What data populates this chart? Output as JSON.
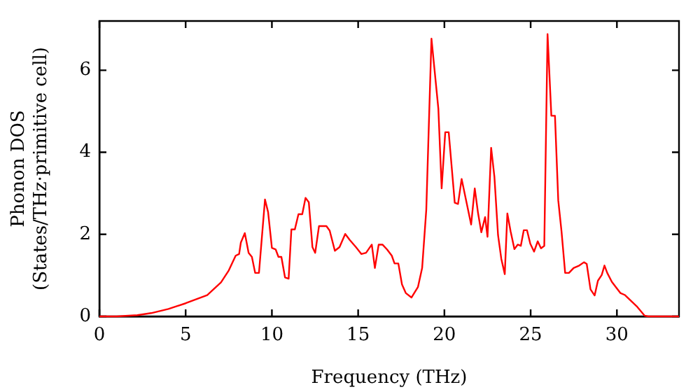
{
  "chart_data": {
    "type": "line",
    "xlabel": "Frequency (THz)",
    "ylabel": "Phonon DOS\n(States/THz·primitive cell)",
    "xlim": [
      0,
      33.6
    ],
    "xticks": [
      0,
      5,
      10,
      15,
      20,
      25,
      30
    ],
    "ylim": [
      0,
      7.2
    ],
    "yticks": [
      0,
      2,
      4,
      6
    ],
    "grid": false,
    "legend": false,
    "marker": "none",
    "line_style": "solid",
    "series": [
      {
        "color": "#ff0000",
        "x": [
          0,
          1,
          2.2,
          3,
          4,
          5,
          6.25,
          7.05,
          7.5,
          7.9,
          8.1,
          8.2,
          8.43,
          8.65,
          8.84,
          9.03,
          9.25,
          9.6,
          9.78,
          10.0,
          10.22,
          10.38,
          10.55,
          10.76,
          10.97,
          11.13,
          11.33,
          11.54,
          11.76,
          11.95,
          12.14,
          12.35,
          12.51,
          12.73,
          13.16,
          13.35,
          13.65,
          13.92,
          14.25,
          14.52,
          14.87,
          15.19,
          15.46,
          15.79,
          15.97,
          16.19,
          16.41,
          16.68,
          16.95,
          17.11,
          17.33,
          17.54,
          17.76,
          18.09,
          18.47,
          18.71,
          18.95,
          19.25,
          19.65,
          19.84,
          20.05,
          20.25,
          20.6,
          20.79,
          21.0,
          21.55,
          21.76,
          21.95,
          22.14,
          22.36,
          22.5,
          22.71,
          22.9,
          23.11,
          23.3,
          23.5,
          23.65,
          23.84,
          24.06,
          24.25,
          24.43,
          24.6,
          24.79,
          24.98,
          25.2,
          25.41,
          25.6,
          25.79,
          25.98,
          26.2,
          26.41,
          26.6,
          26.79,
          27.0,
          27.22,
          27.49,
          27.82,
          28.09,
          28.25,
          28.47,
          28.71,
          28.9,
          29.12,
          29.28,
          29.44,
          29.71,
          30.2,
          30.47,
          31.14,
          31.6,
          31.81,
          33.6
        ],
        "values": [
          0,
          0,
          0.03,
          0.08,
          0.18,
          0.32,
          0.52,
          0.83,
          1.12,
          1.48,
          1.52,
          1.8,
          2.03,
          1.55,
          1.45,
          1.06,
          1.06,
          2.85,
          2.54,
          1.67,
          1.63,
          1.45,
          1.45,
          0.95,
          0.92,
          2.12,
          2.12,
          2.49,
          2.49,
          2.89,
          2.78,
          1.69,
          1.55,
          2.2,
          2.2,
          2.09,
          1.6,
          1.69,
          2.01,
          1.86,
          1.69,
          1.52,
          1.55,
          1.75,
          1.18,
          1.75,
          1.75,
          1.63,
          1.48,
          1.29,
          1.29,
          0.78,
          0.57,
          0.46,
          0.72,
          1.18,
          2.6,
          6.77,
          5.06,
          3.12,
          4.49,
          4.49,
          2.77,
          2.74,
          3.35,
          2.24,
          3.12,
          2.52,
          2.05,
          2.42,
          1.94,
          4.11,
          3.4,
          1.98,
          1.4,
          1.03,
          2.51,
          2.07,
          1.64,
          1.75,
          1.72,
          2.1,
          2.1,
          1.77,
          1.58,
          1.83,
          1.66,
          1.72,
          6.88,
          4.89,
          4.89,
          2.83,
          2.07,
          1.06,
          1.06,
          1.18,
          1.24,
          1.32,
          1.28,
          0.66,
          0.51,
          0.87,
          1.01,
          1.24,
          1.06,
          0.84,
          0.57,
          0.52,
          0.25,
          0.02,
          0,
          0
        ]
      }
    ]
  }
}
